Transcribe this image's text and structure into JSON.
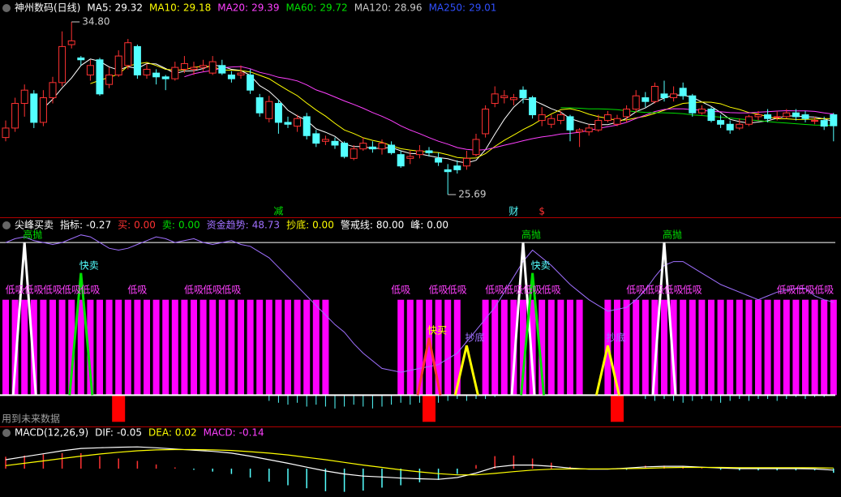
{
  "chart_data": [
    {
      "type": "candlestick",
      "title": "神州数码(日线)",
      "legend": [
        {
          "name": "MA5:",
          "value": 29.32,
          "color": "#ffffff"
        },
        {
          "name": "MA10:",
          "value": 29.18,
          "color": "#ffff00"
        },
        {
          "name": "MA20:",
          "value": 29.39,
          "color": "#ff40ff"
        },
        {
          "name": "MA60:",
          "value": 29.72,
          "color": "#00e000"
        },
        {
          "name": "MA120:",
          "value": 28.96,
          "color": "#c8c8c8"
        },
        {
          "name": "MA250:",
          "value": 29.01,
          "color": "#3050ff"
        }
      ],
      "open": [
        28.7,
        29.2,
        30.5,
        31.0,
        29.5,
        30.8,
        31.6,
        33.6,
        32.9,
        32.0,
        32.8,
        31.5,
        32.0,
        32.5,
        33.5,
        32.0,
        32.1,
        31.9,
        31.8,
        32.3,
        32.3,
        32.4,
        32.1,
        32.5,
        32.0,
        32.0,
        32.0,
        30.8,
        29.7,
        30.5,
        29.5,
        29.3,
        29.8,
        28.9,
        28.5,
        28.5,
        28.4,
        27.6,
        28.1,
        28.2,
        28.1,
        28.3,
        27.8,
        27.6,
        27.8,
        28.0,
        27.6,
        27.0,
        27.2,
        27.2,
        27.8,
        28.9,
        30.5,
        30.8,
        30.7,
        31.2,
        30.8,
        29.6,
        29.4,
        29.6,
        29.8,
        29.0,
        29.0,
        29.1,
        29.6,
        29.4,
        29.8,
        30.2,
        30.8,
        30.6,
        31.0,
        30.8,
        31.3,
        30.9,
        30.0,
        30.2,
        29.6,
        29.4,
        29.2,
        29.4,
        29.8,
        29.9,
        29.8,
        29.8,
        30.0,
        29.9,
        29.6,
        29.6,
        29.9
      ],
      "high": [
        29.6,
        30.8,
        31.5,
        31.2,
        31.2,
        31.9,
        34.3,
        34.8,
        33.0,
        32.8,
        32.9,
        32.4,
        33.3,
        33.9,
        33.6,
        32.6,
        32.3,
        32.0,
        32.7,
        33.0,
        32.7,
        32.8,
        33.0,
        32.8,
        32.2,
        32.5,
        32.3,
        31.0,
        30.9,
        30.7,
        29.8,
        29.9,
        30.0,
        29.1,
        28.8,
        28.7,
        28.5,
        28.3,
        28.7,
        28.5,
        28.6,
        28.5,
        28.0,
        28.0,
        28.3,
        28.2,
        27.9,
        27.3,
        27.5,
        28.0,
        28.9,
        30.4,
        31.4,
        31.2,
        31.0,
        31.4,
        30.9,
        30.3,
        29.9,
        30.1,
        29.9,
        29.2,
        29.4,
        29.9,
        30.1,
        29.9,
        30.4,
        31.2,
        31.1,
        31.6,
        31.7,
        31.4,
        31.6,
        31.0,
        30.4,
        30.3,
        29.9,
        29.6,
        29.7,
        29.9,
        30.1,
        30.2,
        30.1,
        30.2,
        30.2,
        30.1,
        29.8,
        29.8,
        30.0
      ],
      "low": [
        28.5,
        29.0,
        29.8,
        29.2,
        29.3,
        30.5,
        31.4,
        33.4,
        32.5,
        31.7,
        30.9,
        31.3,
        31.9,
        32.3,
        31.8,
        31.8,
        31.5,
        31.2,
        31.7,
        32.1,
        32.0,
        32.2,
        32.0,
        32.0,
        31.6,
        31.8,
        31.0,
        29.8,
        29.5,
        28.9,
        29.2,
        29.0,
        28.6,
        28.2,
        28.3,
        28.1,
        27.6,
        27.5,
        28.0,
        27.9,
        27.8,
        27.8,
        27.1,
        27.3,
        27.6,
        27.7,
        27.2,
        25.69,
        26.8,
        27.0,
        27.7,
        28.7,
        30.3,
        30.5,
        30.4,
        30.5,
        29.7,
        29.3,
        29.2,
        29.4,
        28.5,
        28.2,
        28.8,
        29.0,
        29.5,
        29.3,
        29.5,
        30.0,
        30.3,
        30.5,
        30.6,
        30.6,
        30.7,
        29.8,
        29.9,
        29.5,
        29.2,
        28.9,
        29.1,
        29.3,
        29.6,
        29.5,
        29.6,
        29.7,
        29.6,
        29.5,
        29.4,
        29.1,
        28.5
      ],
      "close": [
        29.2,
        30.5,
        31.2,
        29.5,
        30.8,
        31.6,
        33.5,
        33.8,
        32.8,
        32.5,
        31.0,
        32.0,
        33.0,
        33.7,
        32.0,
        32.3,
        31.9,
        31.8,
        32.4,
        32.6,
        32.4,
        32.5,
        32.7,
        32.1,
        31.8,
        32.1,
        31.2,
        30.0,
        30.6,
        29.5,
        29.4,
        29.7,
        28.8,
        28.4,
        28.6,
        28.3,
        27.7,
        28.1,
        28.4,
        28.1,
        28.4,
        27.9,
        27.2,
        27.7,
        28.0,
        27.9,
        27.4,
        26.9,
        27.0,
        27.6,
        28.6,
        30.2,
        31.0,
        30.9,
        30.8,
        30.8,
        29.9,
        29.9,
        29.7,
        29.9,
        29.1,
        29.1,
        29.2,
        29.6,
        29.9,
        29.7,
        30.2,
        30.9,
        30.6,
        31.4,
        30.8,
        31.0,
        30.9,
        30.0,
        30.2,
        29.6,
        29.4,
        29.1,
        29.4,
        29.8,
        29.9,
        29.7,
        29.8,
        30.0,
        29.8,
        29.7,
        29.6,
        29.3,
        29.32
      ],
      "up_color": "#ff3232",
      "down_color": "#54ffff",
      "annotations": [
        {
          "index": 7,
          "value": 34.8,
          "label": "34.80"
        },
        {
          "index": 47,
          "value": 25.69,
          "label": "25.69"
        }
      ],
      "events": [
        {
          "label": "减",
          "index": 29,
          "color": "#00e000"
        },
        {
          "label": "财",
          "index": 54,
          "color": "#54ffff"
        },
        {
          "label": "$",
          "index": 57,
          "color": "#ff3232"
        }
      ]
    },
    {
      "type": "indicator",
      "title": "尖峰买卖",
      "legend": [
        {
          "name": "指标:",
          "value": -0.27,
          "color": "#ffffff"
        },
        {
          "name": "买:",
          "value": 0,
          "label": "0.00",
          "color": "#ff3232"
        },
        {
          "name": "卖:",
          "value": 0,
          "label": "0.00",
          "color": "#00e000"
        },
        {
          "name": "资金趋势:",
          "value": 48.73,
          "color": "#a070ff"
        },
        {
          "name": "抄底:",
          "value": 0,
          "label": "0.00",
          "color": "#ffff00"
        },
        {
          "name": "警戒线:",
          "value": 80,
          "label": "80.00",
          "color": "#ffffff"
        },
        {
          "name": "峰:",
          "value": 0,
          "label": "0.00",
          "color": "#ffffff"
        }
      ],
      "ylim": [
        -16,
        86
      ],
      "trend": [
        80,
        82,
        83,
        81,
        80,
        79,
        80,
        82,
        84,
        83,
        80,
        77,
        76,
        77,
        79,
        81,
        83,
        82,
        80,
        81,
        82,
        80,
        79,
        80,
        81,
        79,
        78,
        75,
        72,
        67,
        62,
        57,
        52,
        47,
        42,
        37,
        33,
        27,
        22,
        18,
        14,
        13,
        12,
        13,
        14,
        15,
        16,
        19,
        22,
        28,
        34,
        40,
        46,
        54,
        62,
        70,
        76,
        72,
        68,
        63,
        58,
        54,
        50,
        47,
        44,
        45,
        46,
        50,
        55,
        62,
        68,
        70,
        70,
        67,
        64,
        61,
        58,
        56,
        54,
        52,
        50,
        52,
        54,
        55,
        56,
        56,
        52,
        50,
        48.73
      ],
      "bars": {
        "color": "#ff00ff",
        "values": [
          50,
          50,
          50,
          50,
          50,
          50,
          50,
          50,
          50,
          50,
          50,
          50,
          50,
          50,
          50,
          50,
          50,
          50,
          50,
          50,
          50,
          50,
          50,
          50,
          50,
          50,
          50,
          50,
          50,
          50,
          50,
          50,
          50,
          50,
          50,
          null,
          null,
          null,
          null,
          null,
          null,
          null,
          50,
          50,
          50,
          50,
          50,
          50,
          50,
          null,
          null,
          50,
          50,
          50,
          50,
          50,
          50,
          50,
          50,
          50,
          50,
          50,
          null,
          null,
          50,
          50,
          50,
          50,
          50,
          50,
          50,
          50,
          50,
          50,
          50,
          50,
          50,
          50,
          50,
          50,
          50,
          50,
          50,
          50,
          50,
          50,
          50,
          50,
          50
        ]
      },
      "below": {
        "color": "#54ffff",
        "x": [
          28,
          29,
          30,
          31,
          32,
          33,
          34,
          35,
          36,
          37,
          38,
          39,
          40,
          41,
          42,
          43,
          44,
          45,
          46,
          47,
          48,
          49,
          50,
          51,
          52,
          68,
          69,
          70,
          71,
          72,
          73,
          74,
          75,
          76,
          77,
          78,
          79,
          80,
          81,
          82,
          83,
          84,
          85,
          86,
          87
        ],
        "values": [
          -3,
          -4,
          -5,
          -4,
          -6,
          -5,
          -6,
          -7,
          -6,
          -5,
          -6,
          -7,
          -6,
          -5,
          -4,
          -5,
          -4,
          -3,
          -4,
          -3,
          -2,
          -3,
          -2,
          -2,
          -1,
          -2,
          -3,
          -2,
          -3,
          -4,
          -3,
          -2,
          -3,
          -4,
          -3,
          -2,
          -3,
          -2,
          -2,
          -3,
          -2,
          -1,
          -2,
          -1,
          -1
        ]
      },
      "sell_bars": {
        "color": "#ff0000",
        "x": [
          12,
          45,
          65
        ],
        "values": [
          -14,
          -14,
          -14
        ]
      },
      "signals": [
        {
          "label": "高抛",
          "color": "#ffffff",
          "label_color": "#00e000",
          "x": [
            2,
            55,
            70
          ],
          "values": [
            80,
            80,
            80
          ]
        },
        {
          "label": "快卖",
          "color": "#00e000",
          "label_color": "#54ffff",
          "x": [
            8,
            56
          ],
          "values": [
            64,
            64
          ]
        },
        {
          "label": "快买",
          "color": "#ff3232",
          "label_color": "#ffff00",
          "x": [
            45
          ],
          "values": [
            30
          ]
        },
        {
          "label": "抄底",
          "color": "#ffff00",
          "label_color": "#a070ff",
          "x": [
            49,
            64
          ],
          "values": [
            26,
            26
          ]
        }
      ],
      "low_buy": {
        "label": "低吸",
        "color": "#ff40ff",
        "x": [
          1,
          3,
          5,
          7,
          9,
          14,
          20,
          22,
          24,
          42,
          46,
          48,
          52,
          54,
          56,
          58,
          67,
          69,
          71,
          73,
          83,
          85,
          87
        ]
      },
      "note": "用到未来数据"
    },
    {
      "type": "macd",
      "title": "MACD(12,26,9)",
      "legend": [
        {
          "name": "DIF:",
          "value": -0.05,
          "color": "#ffffff"
        },
        {
          "name": "DEA:",
          "value": 0.02,
          "color": "#ffff00"
        },
        {
          "name": "MACD:",
          "value": -0.14,
          "color": "#ff40ff"
        }
      ],
      "ylim": [
        -0.9,
        0.9
      ],
      "x": [
        0,
        2,
        4,
        6,
        8,
        10,
        12,
        14,
        16,
        18,
        20,
        22,
        24,
        26,
        28,
        30,
        32,
        34,
        36,
        38,
        40,
        42,
        44,
        46,
        48,
        50,
        52,
        54,
        56,
        58,
        60,
        62,
        64,
        66,
        68,
        70,
        72,
        74,
        76,
        78,
        80,
        82,
        84,
        86,
        88
      ],
      "dif": [
        0.3,
        0.4,
        0.5,
        0.6,
        0.68,
        0.7,
        0.72,
        0.73,
        0.7,
        0.66,
        0.62,
        0.58,
        0.52,
        0.42,
        0.3,
        0.18,
        0.05,
        -0.08,
        -0.18,
        -0.25,
        -0.28,
        -0.32,
        -0.34,
        -0.36,
        -0.3,
        -0.15,
        0.05,
        0.12,
        0.12,
        0.08,
        0.02,
        -0.02,
        -0.02,
        0.02,
        0.06,
        0.08,
        0.08,
        0.05,
        0.02,
        0.0,
        0.0,
        0.0,
        0.0,
        -0.01,
        -0.05
      ],
      "dea": [
        0.1,
        0.18,
        0.26,
        0.34,
        0.42,
        0.49,
        0.55,
        0.6,
        0.63,
        0.64,
        0.64,
        0.63,
        0.61,
        0.57,
        0.52,
        0.46,
        0.38,
        0.3,
        0.21,
        0.12,
        0.04,
        -0.04,
        -0.11,
        -0.17,
        -0.21,
        -0.21,
        -0.16,
        -0.1,
        -0.05,
        -0.02,
        -0.01,
        -0.01,
        -0.01,
        0.0,
        0.01,
        0.03,
        0.04,
        0.04,
        0.04,
        0.03,
        0.03,
        0.03,
        0.03,
        0.03,
        0.02
      ],
      "hist": [
        0.4,
        0.44,
        0.48,
        0.52,
        0.52,
        0.42,
        0.34,
        0.26,
        0.14,
        0.04,
        -0.04,
        -0.1,
        -0.18,
        -0.3,
        -0.44,
        -0.56,
        -0.66,
        -0.76,
        -0.78,
        -0.74,
        -0.64,
        -0.56,
        -0.46,
        -0.38,
        -0.18,
        0.12,
        0.42,
        0.44,
        0.34,
        0.2,
        0.06,
        -0.02,
        -0.02,
        -0.04,
        0.1,
        0.1,
        0.08,
        0.02,
        -0.04,
        -0.06,
        -0.06,
        -0.06,
        -0.06,
        -0.06,
        -0.14
      ],
      "pos_color": "#ff3232",
      "neg_color": "#54ffff"
    }
  ]
}
